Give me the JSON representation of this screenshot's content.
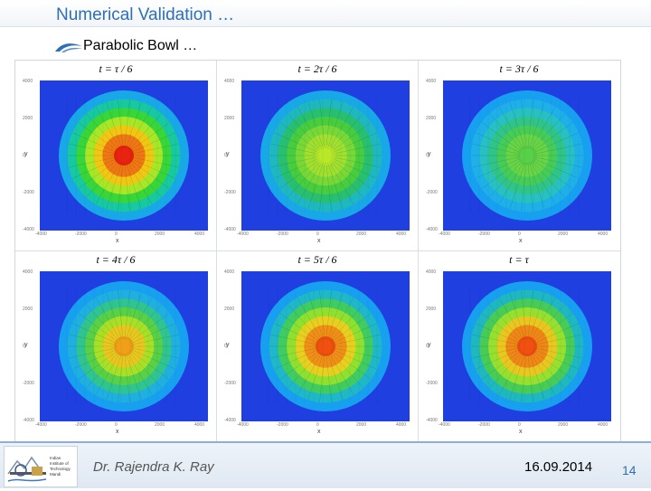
{
  "slide": {
    "title": "Numerical Validation …",
    "subtitle": "Parabolic Bowl …",
    "author": "Dr. Rajendra K. Ray",
    "date": "16.09.2014",
    "page_number": "14"
  },
  "logo": {
    "lines": [
      "Indian",
      "Institute of",
      "Technology",
      "Mandi"
    ]
  },
  "colors": {
    "title": "#2e6fb5",
    "background_field": "#1f3fe0",
    "footer_line": "#8fb0d4"
  },
  "panels": [
    {
      "title": "t = τ / 6",
      "x_axis_label": "x",
      "y_axis_label": "y",
      "ticks": [
        "4000",
        "2000",
        "0",
        "-2000",
        "-4000"
      ],
      "x_ticks": [
        "-4000",
        "-2000",
        "0",
        "2000",
        "4000"
      ],
      "center_color": "#e8230f",
      "rings": [
        "#f07814",
        "#f0c814",
        "#a8e628",
        "#38d63a",
        "#18c8a0",
        "#18a8e8"
      ]
    },
    {
      "title": "t = 2τ / 6",
      "x_axis_label": "x",
      "y_axis_label": "y",
      "ticks": [
        "4000",
        "2000",
        "0",
        "-2000",
        "-4000"
      ],
      "x_ticks": [
        "-4000",
        "-2000",
        "0",
        "2000",
        "4000"
      ],
      "center_color": "#b8e828",
      "rings": [
        "#a0e030",
        "#78d838",
        "#48cc40",
        "#28c070",
        "#20b8c0",
        "#18a8e8"
      ]
    },
    {
      "title": "t = 3τ / 6",
      "x_axis_label": "x",
      "y_axis_label": "y",
      "ticks": [
        "4000",
        "2000",
        "0",
        "-2000",
        "-4000"
      ],
      "x_ticks": [
        "-4000",
        "-2000",
        "0",
        "2000",
        "4000"
      ],
      "center_color": "#58d048",
      "rings": [
        "#68d448",
        "#48cc58",
        "#30c488",
        "#28c0c0",
        "#20b0e8",
        "#18a0f0"
      ]
    },
    {
      "title": "t = 4τ / 6",
      "x_axis_label": "x",
      "y_axis_label": "y",
      "ticks": [
        "4000",
        "2000",
        "0",
        "-2000",
        "-4000"
      ],
      "x_ticks": [
        "-4000",
        "-2000",
        "0",
        "2000",
        "4000"
      ],
      "center_color": "#f0a018",
      "rings": [
        "#e8c820",
        "#a8e028",
        "#58d048",
        "#30c490",
        "#20b0e0",
        "#18a0f0"
      ]
    },
    {
      "title": "t = 5τ / 6",
      "x_axis_label": "x",
      "y_axis_label": "y",
      "ticks": [
        "4000",
        "2000",
        "0",
        "-2000",
        "-4000"
      ],
      "x_ticks": [
        "-4000",
        "-2000",
        "0",
        "2000",
        "4000"
      ],
      "center_color": "#f05010",
      "rings": [
        "#f09018",
        "#e8d020",
        "#90e030",
        "#40cc60",
        "#20b8c8",
        "#18a0f0"
      ]
    },
    {
      "title": "t = τ",
      "x_axis_label": "x",
      "y_axis_label": "y",
      "ticks": [
        "4000",
        "2000",
        "0",
        "-2000",
        "-4000"
      ],
      "x_ticks": [
        "-4000",
        "-2000",
        "0",
        "2000",
        "4000"
      ],
      "center_color": "#f05010",
      "rings": [
        "#f08818",
        "#e8c820",
        "#98e030",
        "#48cc58",
        "#20b8c0",
        "#18a0f0"
      ]
    }
  ]
}
